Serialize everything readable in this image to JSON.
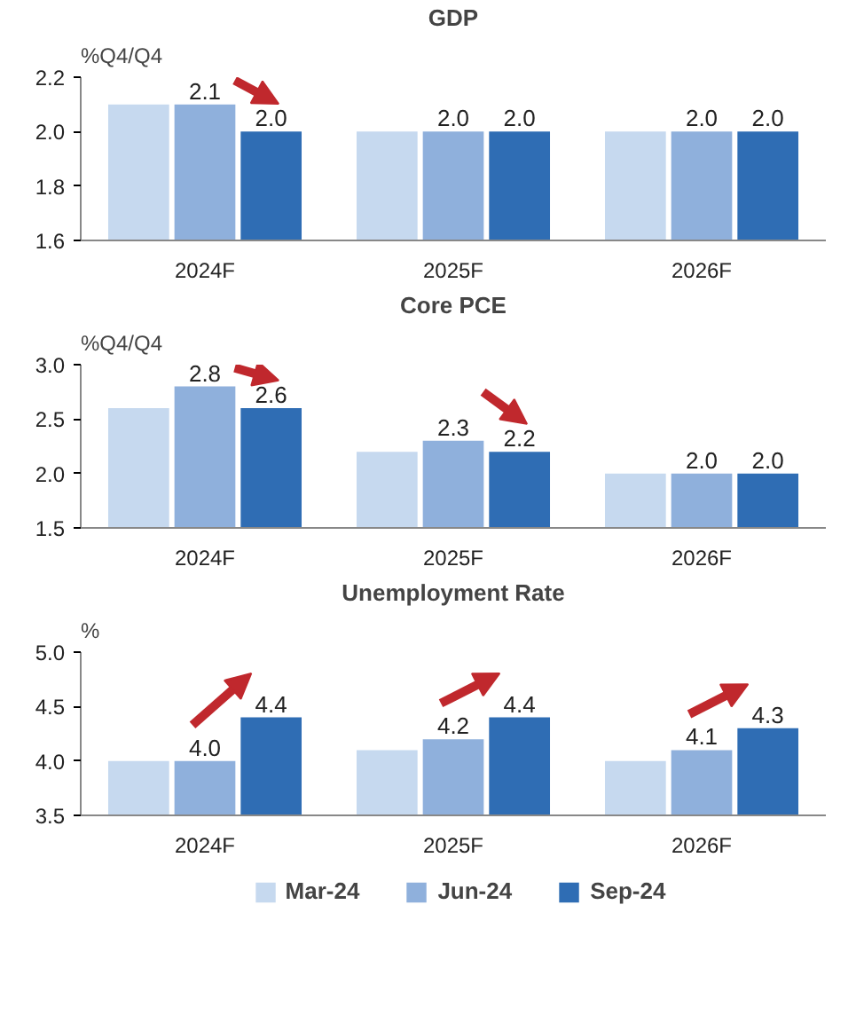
{
  "chart_data": [
    {
      "type": "bar",
      "title": "GDP",
      "ylabel": "%Q4/Q4",
      "categories": [
        "2024F",
        "2025F",
        "2026F"
      ],
      "ylim": [
        1.6,
        2.2
      ],
      "yticks": [
        1.6,
        1.8,
        {
          "value": 2.0,
          "label": "2.0"
        },
        2.2
      ],
      "series": [
        {
          "color": "#c6d9ef",
          "values": [
            2.1,
            2.0,
            2.0
          ],
          "value_labels": [
            null,
            null,
            null
          ]
        },
        {
          "color": "#8fb0dc",
          "values": [
            2.1,
            2.0,
            2.0
          ],
          "value_labels": [
            "2.1",
            "2.0",
            "2.0"
          ]
        },
        {
          "color": "#2f6db4",
          "values": [
            2.0,
            2.0,
            2.0
          ],
          "value_labels": [
            "2.0",
            "2.0",
            "2.0"
          ]
        }
      ]
    },
    {
      "type": "bar",
      "title": "Core PCE",
      "ylabel": "%Q4/Q4",
      "categories": [
        "2024F",
        "2025F",
        "2026F"
      ],
      "ylim": [
        1.5,
        3.0
      ],
      "yticks": [
        1.5,
        {
          "value": 2.0,
          "label": "2.0"
        },
        2.5,
        {
          "value": 3.0,
          "label": "3.0"
        }
      ],
      "series": [
        {
          "color": "#c6d9ef",
          "values": [
            2.6,
            2.2,
            2.0
          ],
          "value_labels": [
            null,
            null,
            null
          ]
        },
        {
          "color": "#8fb0dc",
          "values": [
            2.8,
            2.3,
            2.0
          ],
          "value_labels": [
            "2.8",
            "2.3",
            "2.0"
          ]
        },
        {
          "color": "#2f6db4",
          "values": [
            2.6,
            2.2,
            2.0
          ],
          "value_labels": [
            "2.6",
            "2.2",
            "2.0"
          ]
        }
      ]
    },
    {
      "type": "bar",
      "title": "Unemployment Rate",
      "ylabel": "%",
      "categories": [
        "2024F",
        "2025F",
        "2026F"
      ],
      "ylim": [
        3.5,
        5.0
      ],
      "yticks": [
        3.5,
        {
          "value": 4.0,
          "label": "4.0"
        },
        4.5,
        {
          "value": 5.0,
          "label": "5.0"
        }
      ],
      "legend": "bottom",
      "series": [
        {
          "name": "Mar-24",
          "color": "#c6d9ef",
          "values": [
            4.0,
            4.1,
            4.0
          ],
          "value_labels": [
            null,
            null,
            null
          ]
        },
        {
          "name": "Jun-24",
          "color": "#8fb0dc",
          "values": [
            4.0,
            4.2,
            4.1
          ],
          "value_labels": [
            "4.0",
            "4.2",
            "4.1"
          ]
        },
        {
          "name": "Sep-24",
          "color": "#2f6db4",
          "values": [
            4.4,
            4.4,
            4.3
          ],
          "value_labels": [
            "4.4",
            "4.4",
            "4.3"
          ]
        }
      ]
    }
  ]
}
